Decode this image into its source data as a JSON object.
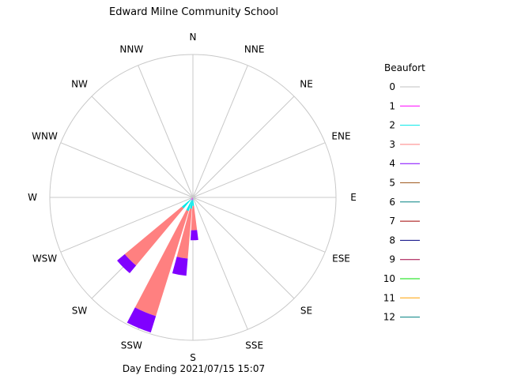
{
  "chart_data": {
    "type": "wind-rose",
    "title": "Edward Milne Community School",
    "footer": "Day Ending 2021/07/15 15:07",
    "directions": [
      "N",
      "NNE",
      "NE",
      "ENE",
      "E",
      "ESE",
      "SE",
      "SSE",
      "S",
      "SSW",
      "SW",
      "WSW",
      "W",
      "WNW",
      "NW",
      "NNW"
    ],
    "rlim": [
      0,
      100
    ],
    "grid": true,
    "legend": {
      "title": "Beaufort",
      "placement": "right",
      "entries": [
        {
          "label": "0",
          "color": "#c0c0c0"
        },
        {
          "label": "1",
          "color": "#ff00ff"
        },
        {
          "label": "2",
          "color": "#00e8e8"
        },
        {
          "label": "3",
          "color": "#ff8080"
        },
        {
          "label": "4",
          "color": "#8000ff"
        },
        {
          "label": "5",
          "color": "#a05a20"
        },
        {
          "label": "6",
          "color": "#008080"
        },
        {
          "label": "7",
          "color": "#a00000"
        },
        {
          "label": "8",
          "color": "#000080"
        },
        {
          "label": "9",
          "color": "#a00040"
        },
        {
          "label": "10",
          "color": "#00e000"
        },
        {
          "label": "11",
          "color": "#ffa000"
        },
        {
          "label": "12",
          "color": "#008080"
        }
      ]
    },
    "series": [
      {
        "direction": "SSW",
        "angle": 202.5,
        "segments": [
          {
            "beaufort": "1",
            "from": 0,
            "to": 2
          },
          {
            "beaufort": "2",
            "from": 2,
            "to": 10
          },
          {
            "beaufort": "3",
            "from": 10,
            "to": 87
          },
          {
            "beaufort": "4",
            "from": 87,
            "to": 99
          }
        ]
      },
      {
        "direction": "SW",
        "angle": 225,
        "segments": [
          {
            "beaufort": "1",
            "from": 0,
            "to": 2
          },
          {
            "beaufort": "2",
            "from": 2,
            "to": 10
          },
          {
            "beaufort": "3",
            "from": 10,
            "to": 62
          },
          {
            "beaufort": "4",
            "from": 62,
            "to": 69
          }
        ]
      },
      {
        "direction": "S",
        "angle": 190,
        "segments": [
          {
            "beaufort": "1",
            "from": 0,
            "to": 2
          },
          {
            "beaufort": "2",
            "from": 2,
            "to": 8
          },
          {
            "beaufort": "3",
            "from": 8,
            "to": 43
          },
          {
            "beaufort": "4",
            "from": 43,
            "to": 55
          }
        ]
      },
      {
        "direction": "S",
        "angle": 178,
        "segments": [
          {
            "beaufort": "2",
            "from": 0,
            "to": 6
          },
          {
            "beaufort": "3",
            "from": 6,
            "to": 23
          },
          {
            "beaufort": "4",
            "from": 23,
            "to": 30
          }
        ]
      }
    ]
  }
}
